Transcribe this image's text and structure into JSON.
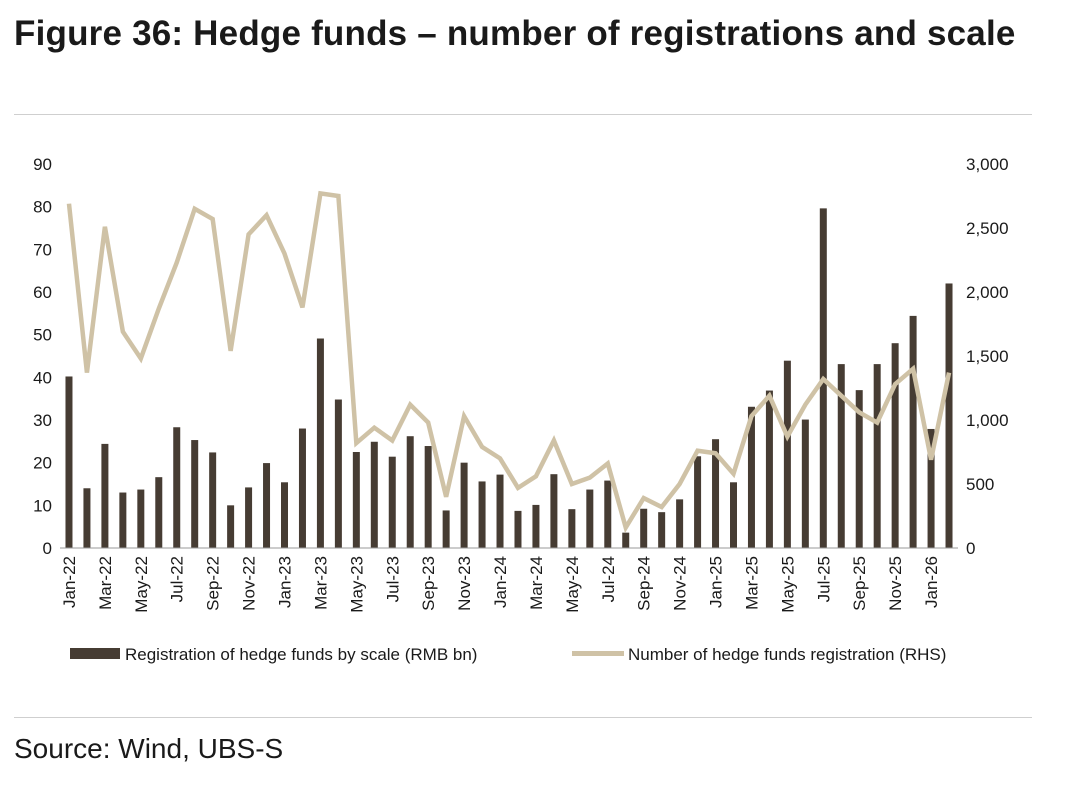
{
  "title": "Figure 36: Hedge funds – number of registrations and scale",
  "source": "Source: Wind, UBS-S",
  "colors": {
    "bar": "#463c33",
    "line": "#cfc2a6",
    "rule": "#cfcfcf",
    "text": "#1a1a1a"
  },
  "chart_data": {
    "type": "bar+line",
    "title": "Hedge funds – number of registrations and scale",
    "categories": [
      "Jan-22",
      "Feb-22",
      "Mar-22",
      "Apr-22",
      "May-22",
      "Jun-22",
      "Jul-22",
      "Aug-22",
      "Sep-22",
      "Oct-22",
      "Nov-22",
      "Dec-22",
      "Jan-23",
      "Feb-23",
      "Mar-23",
      "Apr-23",
      "May-23",
      "Jun-23",
      "Jul-23",
      "Aug-23",
      "Sep-23",
      "Oct-23",
      "Nov-23",
      "Dec-23",
      "Jan-24",
      "Feb-24",
      "Mar-24",
      "Apr-24",
      "May-24",
      "Jun-24",
      "Jul-24",
      "Aug-24",
      "Sep-24",
      "Oct-24",
      "Nov-24",
      "Dec-24",
      "Jan-25",
      "Feb-25",
      "Mar-25",
      "Apr-25",
      "May-25",
      "Jun-25",
      "Jul-25",
      "Aug-25",
      "Sep-25",
      "Oct-25",
      "Nov-25",
      "Dec-25",
      "Jan-26",
      "Feb-26"
    ],
    "x_tick_labels": [
      "Jan-22",
      "Mar-22",
      "May-22",
      "Jul-22",
      "Sep-22",
      "Nov-22",
      "Jan-23",
      "Mar-23",
      "May-23",
      "Jul-23",
      "Sep-23",
      "Nov-23",
      "Jan-24",
      "Mar-24",
      "May-24",
      "Jul-24",
      "Sep-24",
      "Nov-24",
      "Jan-25",
      "Mar-25",
      "May-25",
      "Jul-25",
      "Sep-25",
      "Nov-25",
      "Jan-26"
    ],
    "series": [
      {
        "name": "Registration of hedge funds by scale (RMB bn)",
        "type": "bar",
        "axis": "left",
        "values": [
          40.2,
          14.0,
          24.4,
          13.0,
          13.7,
          16.6,
          28.3,
          25.3,
          22.4,
          10.0,
          14.2,
          19.9,
          15.4,
          28.0,
          49.1,
          34.8,
          22.5,
          24.9,
          21.4,
          26.2,
          23.9,
          8.8,
          20.0,
          15.6,
          17.2,
          8.7,
          10.1,
          17.3,
          9.1,
          13.7,
          15.8,
          3.6,
          9.2,
          8.4,
          11.4,
          21.5,
          25.5,
          15.4,
          33.1,
          36.9,
          43.9,
          30.1,
          79.6,
          43.1,
          37.0,
          43.1,
          48.0,
          54.4,
          27.9,
          62.0
        ]
      },
      {
        "name": "Number of hedge funds registration (RHS)",
        "type": "line",
        "axis": "right",
        "values": [
          2690,
          1370,
          2510,
          1690,
          1480,
          1870,
          2230,
          2650,
          2570,
          1540,
          2450,
          2600,
          2300,
          1880,
          2770,
          2750,
          820,
          940,
          840,
          1120,
          980,
          400,
          1030,
          790,
          700,
          470,
          560,
          840,
          500,
          550,
          660,
          160,
          390,
          320,
          500,
          760,
          740,
          580,
          1030,
          1190,
          870,
          1120,
          1320,
          1190,
          1060,
          980,
          1280,
          1400,
          690,
          1370
        ]
      }
    ],
    "y_left": {
      "min": 0,
      "max": 90,
      "ticks": [
        "0",
        "10",
        "20",
        "30",
        "40",
        "50",
        "60",
        "70",
        "80",
        "90"
      ]
    },
    "y_right": {
      "min": 0,
      "max": 3000,
      "ticks": [
        "0",
        "500",
        "1,000",
        "1,500",
        "2,000",
        "2,500",
        "3,000"
      ]
    },
    "legend": {
      "position": "bottom",
      "items": [
        "Registration of hedge funds by scale (RMB bn)",
        "Number of hedge funds registration (RHS)"
      ]
    },
    "grid": false
  }
}
